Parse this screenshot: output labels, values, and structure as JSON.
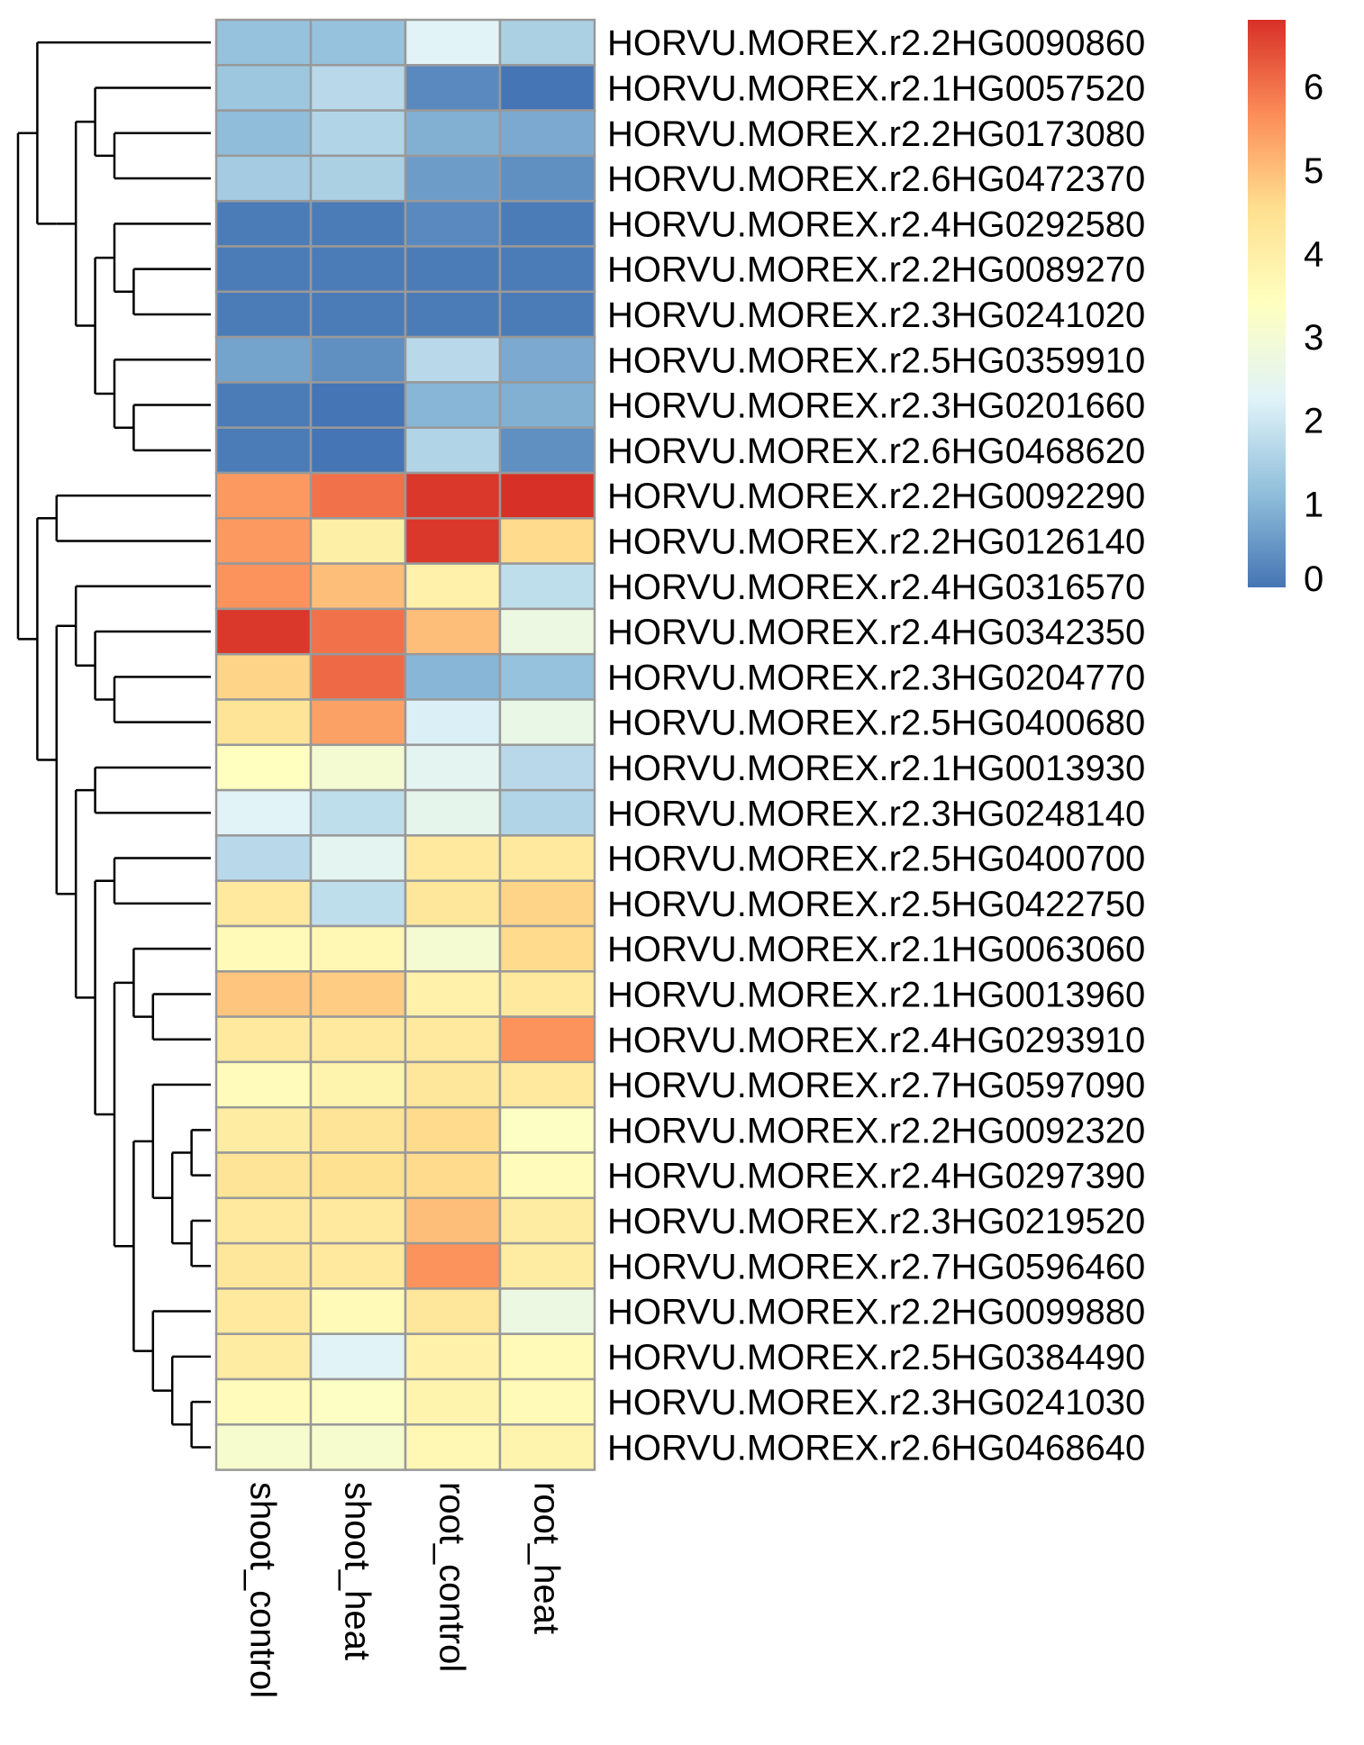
{
  "chart_data": {
    "type": "heatmap",
    "title": "",
    "xlabel": "",
    "ylabel": "",
    "columns": [
      "shoot_control",
      "shoot_heat",
      "root_control",
      "root_heat"
    ],
    "rows": [
      "HORVU.MOREX.r2.2HG0090860",
      "HORVU.MOREX.r2.1HG0057520",
      "HORVU.MOREX.r2.2HG0173080",
      "HORVU.MOREX.r2.6HG0472370",
      "HORVU.MOREX.r2.4HG0292580",
      "HORVU.MOREX.r2.2HG0089270",
      "HORVU.MOREX.r2.3HG0241020",
      "HORVU.MOREX.r2.5HG0359910",
      "HORVU.MOREX.r2.3HG0201660",
      "HORVU.MOREX.r2.6HG0468620",
      "HORVU.MOREX.r2.2HG0092290",
      "HORVU.MOREX.r2.2HG0126140",
      "HORVU.MOREX.r2.4HG0316570",
      "HORVU.MOREX.r2.4HG0342350",
      "HORVU.MOREX.r2.3HG0204770",
      "HORVU.MOREX.r2.5HG0400680",
      "HORVU.MOREX.r2.1HG0013930",
      "HORVU.MOREX.r2.3HG0248140",
      "HORVU.MOREX.r2.5HG0400700",
      "HORVU.MOREX.r2.5HG0422750",
      "HORVU.MOREX.r2.1HG0063060",
      "HORVU.MOREX.r2.1HG0013960",
      "HORVU.MOREX.r2.4HG0293910",
      "HORVU.MOREX.r2.7HG0597090",
      "HORVU.MOREX.r2.2HG0092320",
      "HORVU.MOREX.r2.4HG0297390",
      "HORVU.MOREX.r2.3HG0219520",
      "HORVU.MOREX.r2.7HG0596460",
      "HORVU.MOREX.r2.2HG0099880",
      "HORVU.MOREX.r2.5HG0384490",
      "HORVU.MOREX.r2.3HG0241030",
      "HORVU.MOREX.r2.6HG0468640"
    ],
    "values": [
      [
        1.2,
        1.2,
        2.3,
        1.5
      ],
      [
        1.3,
        1.7,
        0.3,
        0.0
      ],
      [
        1.1,
        1.6,
        0.9,
        0.8
      ],
      [
        1.4,
        1.5,
        0.6,
        0.4
      ],
      [
        0.1,
        0.1,
        0.3,
        0.1
      ],
      [
        0.1,
        0.1,
        0.1,
        0.1
      ],
      [
        0.1,
        0.1,
        0.1,
        0.1
      ],
      [
        0.7,
        0.4,
        1.7,
        0.8
      ],
      [
        0.1,
        0.0,
        1.0,
        0.9
      ],
      [
        0.1,
        0.0,
        1.6,
        0.4
      ],
      [
        5.5,
        6.0,
        6.7,
        6.8
      ],
      [
        5.5,
        4.0,
        6.7,
        4.6
      ],
      [
        5.6,
        5.0,
        3.9,
        1.8
      ],
      [
        6.7,
        6.0,
        5.0,
        2.7
      ],
      [
        4.7,
        6.1,
        1.0,
        1.2
      ],
      [
        4.4,
        5.4,
        2.2,
        2.6
      ],
      [
        3.4,
        3.0,
        2.4,
        1.7
      ],
      [
        2.3,
        1.8,
        2.5,
        1.6
      ],
      [
        1.7,
        2.4,
        4.2,
        4.2
      ],
      [
        4.2,
        1.8,
        4.3,
        4.7
      ],
      [
        3.6,
        3.7,
        3.0,
        4.6
      ],
      [
        4.9,
        4.8,
        3.9,
        4.2
      ],
      [
        4.2,
        4.2,
        4.2,
        5.6
      ],
      [
        3.5,
        3.8,
        4.3,
        4.2
      ],
      [
        4.1,
        4.4,
        4.6,
        3.3
      ],
      [
        4.4,
        4.5,
        4.6,
        3.5
      ],
      [
        4.2,
        4.2,
        5.0,
        4.1
      ],
      [
        4.3,
        4.2,
        5.6,
        4.1
      ],
      [
        4.2,
        3.6,
        4.3,
        2.7
      ],
      [
        4.1,
        2.3,
        3.9,
        3.6
      ],
      [
        3.5,
        3.3,
        3.8,
        3.6
      ],
      [
        3.1,
        3.1,
        3.7,
        3.8
      ]
    ],
    "color_scale": {
      "stops": [
        "#4575B4",
        "#91BFDB",
        "#E0F3F8",
        "#FFFFBF",
        "#FEE090",
        "#FC8D59",
        "#D73027"
      ],
      "min": 0,
      "max": 6.8
    },
    "legend": {
      "position": "top-right",
      "ticks": [
        0,
        1,
        2,
        3,
        4,
        5,
        6
      ]
    },
    "cell_border_color": "#999999",
    "dendrogram": {
      "rows": true,
      "columns": false
    }
  }
}
